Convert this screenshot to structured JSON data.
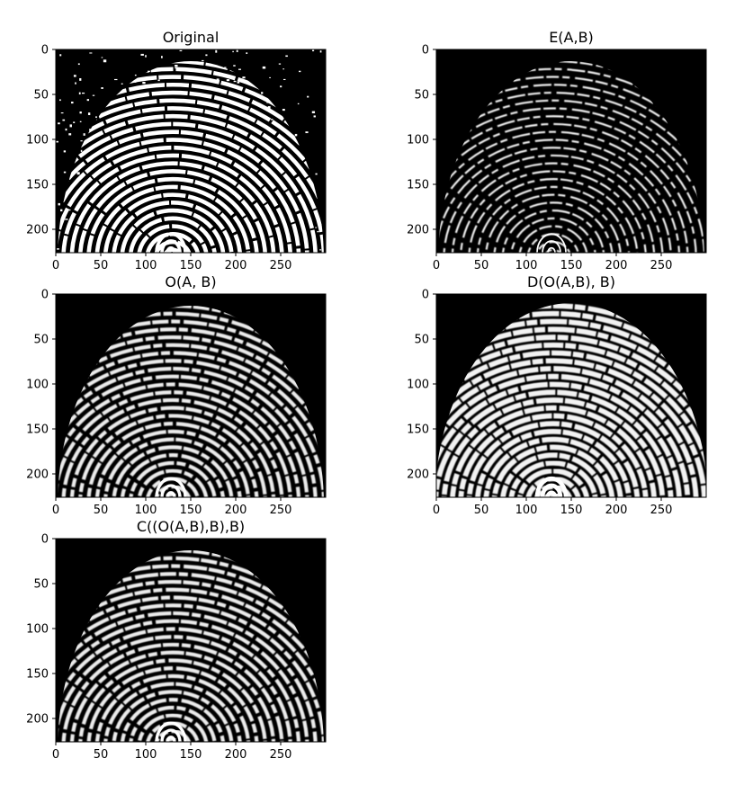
{
  "figure": {
    "panels": [
      {
        "id": "original",
        "title": "Original",
        "style": "binary"
      },
      {
        "id": "erosion",
        "title": "E(A,B)",
        "style": "eroded"
      },
      {
        "id": "opening",
        "title": "O(A, B)",
        "style": "opened"
      },
      {
        "id": "dilation_of_opening",
        "title": "D(O(A,B), B)",
        "style": "dilated"
      },
      {
        "id": "closing_of_opening",
        "title": "C((O(A,B),B),B)",
        "style": "opened"
      }
    ],
    "x_ticks": [
      "0",
      "50",
      "100",
      "150",
      "200",
      "250"
    ],
    "y_ticks": [
      "0",
      "50",
      "100",
      "150",
      "200"
    ],
    "image_extent": {
      "x": [
        0,
        300
      ],
      "y": [
        0,
        226
      ]
    },
    "colors": {
      "background": "#ffffff",
      "image_bg": "#000000",
      "ridge": "#ffffff",
      "axis": "#000000"
    }
  }
}
